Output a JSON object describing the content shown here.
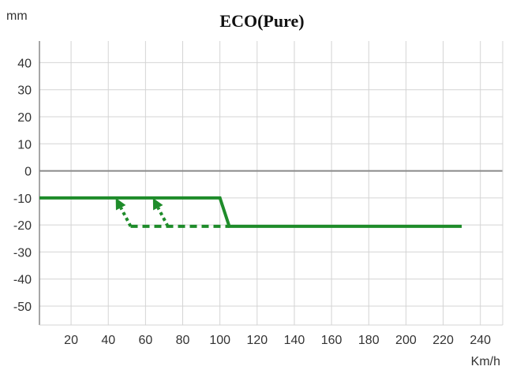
{
  "chart_data": {
    "type": "line",
    "title": "ECO(Pure)",
    "xlabel": "Km/h",
    "ylabel": "mm",
    "xlim": [
      3,
      252
    ],
    "ylim": [
      -57,
      48
    ],
    "xticks": [
      20,
      40,
      60,
      80,
      100,
      120,
      140,
      160,
      180,
      200,
      220,
      240
    ],
    "yticks": [
      40,
      30,
      20,
      10,
      0,
      -10,
      -20,
      -30,
      -40,
      -50
    ],
    "grid": true,
    "series": [
      {
        "style": "solid",
        "points": [
          [
            3,
            -10
          ],
          [
            100,
            -10
          ],
          [
            105,
            -20.5
          ],
          [
            230,
            -20.5
          ]
        ]
      },
      {
        "style": "dashed",
        "points": [
          [
            52,
            -20.5
          ],
          [
            105,
            -20.5
          ]
        ]
      }
    ],
    "arrows": [
      {
        "style": "dotted",
        "from": [
          52,
          -20.5
        ],
        "to": [
          44,
          -10
        ]
      },
      {
        "style": "dotted",
        "from": [
          72,
          -20.5
        ],
        "to": [
          64,
          -10
        ]
      }
    ],
    "colors": {
      "line": "#1e8c2a",
      "grid": "#d4d4d4",
      "zero_line": "#8a8a8a",
      "axis": "#888888",
      "text": "#333333"
    }
  }
}
